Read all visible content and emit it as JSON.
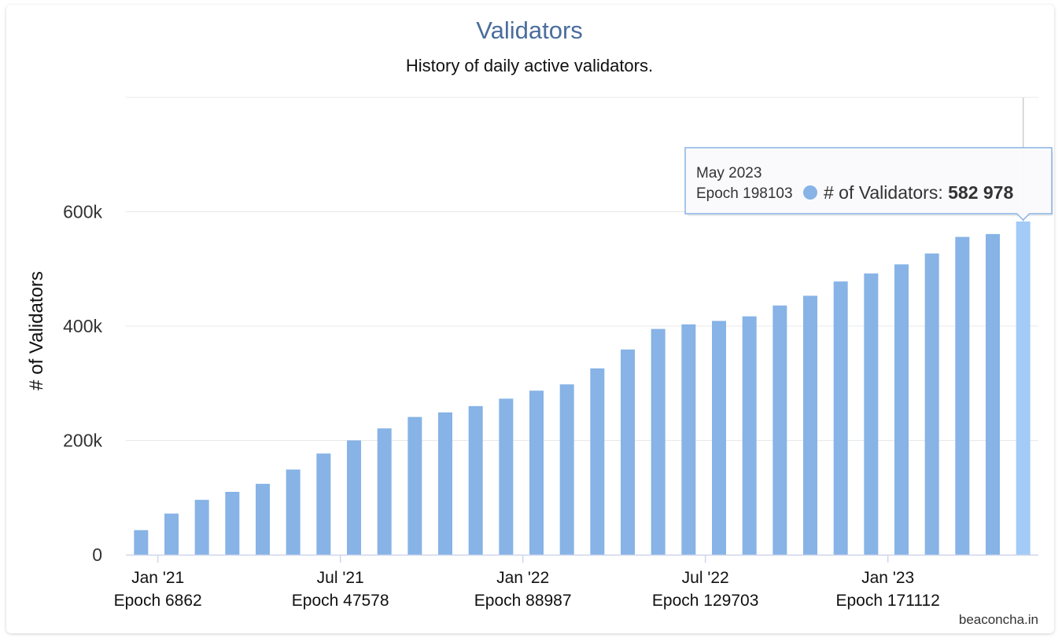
{
  "chart_data": {
    "type": "bar",
    "title": "Validators",
    "subtitle": "History of daily active validators.",
    "ylabel": "# of Validators",
    "ylim": [
      0,
      800000
    ],
    "yticks": [
      {
        "value": 0,
        "label": "0"
      },
      {
        "value": 200000,
        "label": "200k"
      },
      {
        "value": 400000,
        "label": "400k"
      },
      {
        "value": 600000,
        "label": "600k"
      }
    ],
    "xticks": [
      {
        "index": 1,
        "label": "Jan '21",
        "sublabel": "Epoch 6862"
      },
      {
        "index": 7,
        "label": "Jul '21",
        "sublabel": "Epoch 47578"
      },
      {
        "index": 13,
        "label": "Jan '22",
        "sublabel": "Epoch 88987"
      },
      {
        "index": 19,
        "label": "Jul '22",
        "sublabel": "Epoch 129703"
      },
      {
        "index": 25,
        "label": "Jan '23",
        "sublabel": "Epoch 171112"
      }
    ],
    "series": [
      {
        "name": "# of Validators",
        "color": "#87b3e6",
        "highlight_color": "#a3cbf7",
        "values": [
          43000,
          72000,
          96000,
          110000,
          124000,
          149000,
          177000,
          200000,
          221000,
          241000,
          249000,
          260000,
          273000,
          287000,
          298000,
          326000,
          359000,
          395000,
          403000,
          409000,
          417000,
          436000,
          453000,
          478000,
          492000,
          508000,
          527000,
          556000,
          561000,
          582978
        ]
      }
    ],
    "tooltip": {
      "index": 29,
      "date": "May 2023",
      "epoch": "Epoch 198103",
      "series_label": "# of Validators:",
      "value_text": "582 978"
    },
    "credits": "beaconcha.in",
    "grid": true,
    "legend": false
  }
}
